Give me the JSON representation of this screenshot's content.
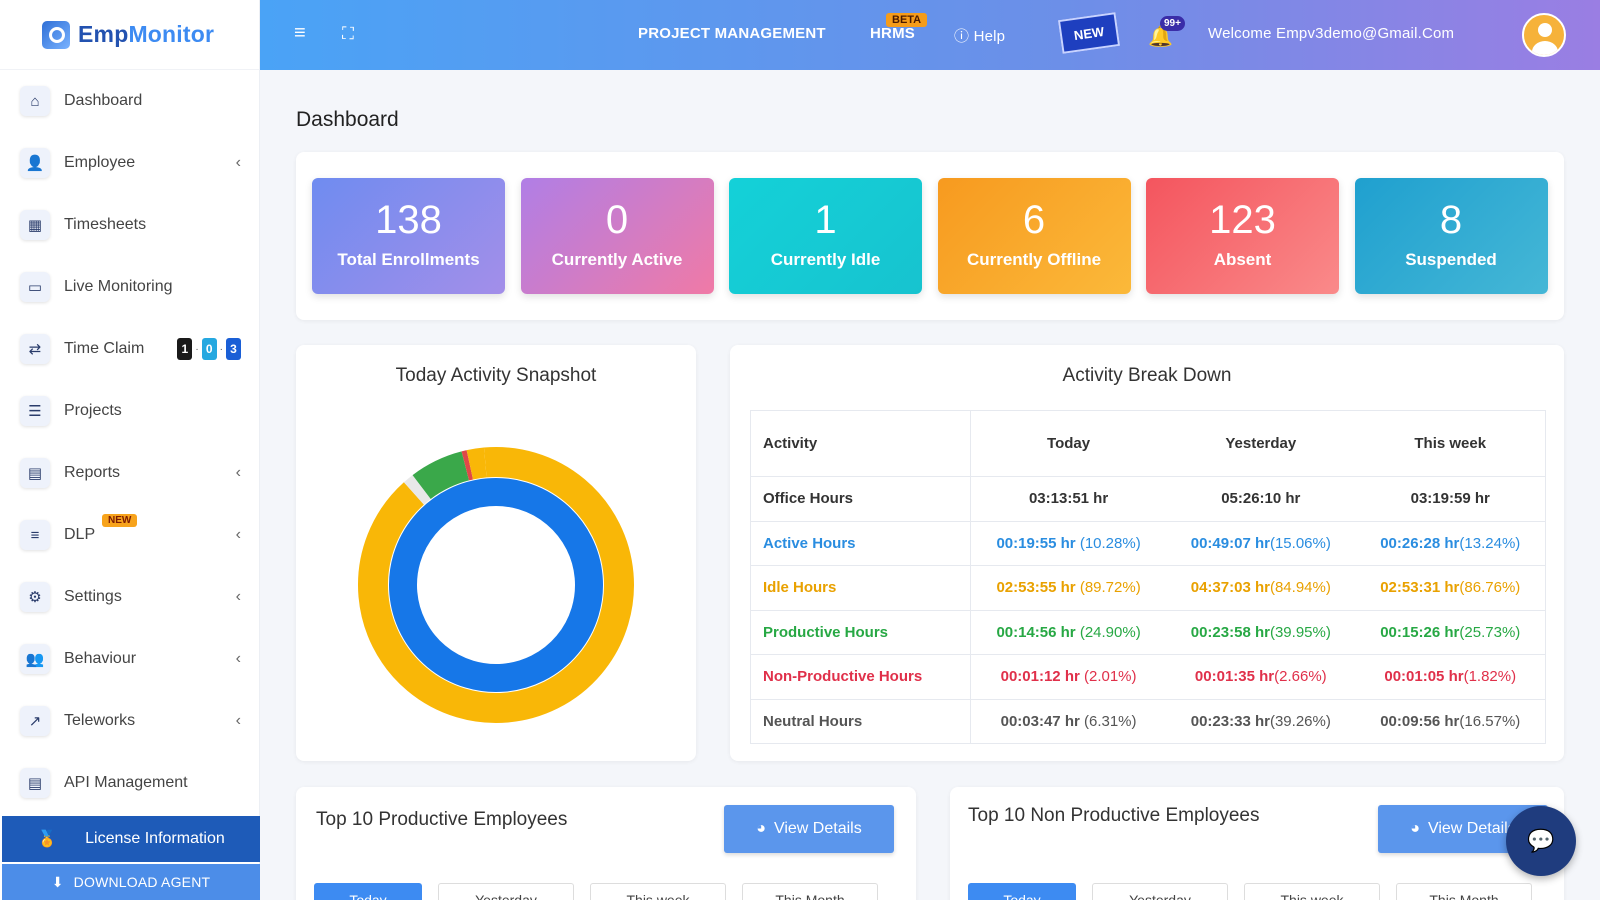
{
  "app": {
    "logo_emp": "Emp",
    "logo_monitor": "Monitor"
  },
  "sidebar": {
    "items": [
      {
        "label": "Dashboard",
        "icon": "home-icon",
        "glyph": "⌂"
      },
      {
        "label": "Employee",
        "icon": "user-icon",
        "glyph": "👤"
      },
      {
        "label": "Timesheets",
        "icon": "calendar-icon",
        "glyph": "▦"
      },
      {
        "label": "Live Monitoring",
        "icon": "monitor-icon",
        "glyph": "▭"
      },
      {
        "label": "Time Claim",
        "icon": "exchange-icon",
        "glyph": "⇄"
      },
      {
        "label": "Projects",
        "icon": "list-check-icon",
        "glyph": "☰"
      },
      {
        "label": "Reports",
        "icon": "report-icon",
        "glyph": "▤"
      },
      {
        "label": "DLP",
        "icon": "sliders-icon",
        "glyph": "≡"
      },
      {
        "label": "Settings",
        "icon": "gear-icon",
        "glyph": "⚙"
      },
      {
        "label": "Behaviour",
        "icon": "users-gear-icon",
        "glyph": "👥"
      },
      {
        "label": "Teleworks",
        "icon": "line-chart-icon",
        "glyph": "↗"
      },
      {
        "label": "API Management",
        "icon": "document-icon",
        "glyph": "▤"
      }
    ],
    "dlp_badge": "NEW",
    "time_claim_badges": [
      "1",
      "0",
      "3"
    ],
    "time_claim_badge_colors": [
      "#1a1a1a",
      "#25a8e0",
      "#1a5fd6"
    ],
    "license_label": "License Information",
    "download_label": "DOWNLOAD AGENT"
  },
  "topbar": {
    "project_management": "PROJECT MANAGEMENT",
    "hrms": "HRMS",
    "beta": "BETA",
    "help": "Help",
    "new_flag": "NEW",
    "notifications": "99+",
    "welcome": "Welcome  Empv3demo@Gmail.Com"
  },
  "page": {
    "title": "Dashboard"
  },
  "stats": [
    {
      "value": "138",
      "label": "Total Enrollments",
      "gradient": [
        "#6f8cf0",
        "#a38ee9"
      ]
    },
    {
      "value": "0",
      "label": "Currently Active",
      "gradient": [
        "#b07ee6",
        "#f07aa6"
      ]
    },
    {
      "value": "1",
      "label": "Currently Idle",
      "gradient": [
        "#14d1d8",
        "#17c3cf"
      ]
    },
    {
      "value": "6",
      "label": "Currently Offline",
      "gradient": [
        "#f79a1f",
        "#fbb93a"
      ]
    },
    {
      "value": "123",
      "label": "Absent",
      "gradient": [
        "#f4555e",
        "#fa8a8a"
      ]
    },
    {
      "value": "8",
      "label": "Suspended",
      "gradient": [
        "#1fa0cf",
        "#45b7d6"
      ]
    }
  ],
  "snapshot": {
    "title": "Today Activity Snapshot",
    "chart_data": {
      "type": "pie",
      "outer_ring": [
        {
          "value": 89.72,
          "color": "#f9b707"
        },
        {
          "value": 1.3,
          "color": "#e8e8e8"
        },
        {
          "value": 6.31,
          "color": "#3aa84a"
        },
        {
          "value": 0.6,
          "color": "#e04848"
        },
        {
          "value": 2.07,
          "color": "#f9b707"
        }
      ],
      "inner_ring": [
        {
          "value": 100,
          "color": "#1677e8"
        }
      ]
    }
  },
  "breakdown": {
    "title": "Activity Break Down",
    "headers": [
      "Activity",
      "Today",
      "Yesterday",
      "This week"
    ],
    "rows": [
      {
        "label": "Office Hours",
        "color": "#333333",
        "cells": [
          [
            "03:13:51 hr",
            ""
          ],
          [
            "05:26:10 hr",
            ""
          ],
          [
            "03:19:59 hr",
            ""
          ]
        ]
      },
      {
        "label": "Active Hours",
        "color": "#2a8de0",
        "cells": [
          [
            "00:19:55 hr",
            " (10.28%)"
          ],
          [
            "00:49:07 hr",
            "(15.06%)"
          ],
          [
            "00:26:28 hr",
            "(13.24%)"
          ]
        ]
      },
      {
        "label": "Idle Hours",
        "color": "#e9a100",
        "cells": [
          [
            "02:53:55 hr",
            " (89.72%)"
          ],
          [
            "04:37:03 hr",
            "(84.94%)"
          ],
          [
            "02:53:31 hr",
            "(86.76%)"
          ]
        ]
      },
      {
        "label": "Productive Hours",
        "color": "#27a844",
        "cells": [
          [
            "00:14:56 hr",
            " (24.90%)"
          ],
          [
            "00:23:58 hr",
            "(39.95%)"
          ],
          [
            "00:15:26 hr",
            "(25.73%)"
          ]
        ]
      },
      {
        "label": "Non-Productive Hours",
        "color": "#e0304a",
        "cells": [
          [
            "00:01:12 hr",
            " (2.01%)"
          ],
          [
            "00:01:35 hr",
            "(2.66%)"
          ],
          [
            "00:01:05 hr",
            "(1.82%)"
          ]
        ]
      },
      {
        "label": "Neutral Hours",
        "color": "#555555",
        "cells": [
          [
            "00:03:47 hr",
            " (6.31%)"
          ],
          [
            "00:23:33 hr",
            "(39.26%)"
          ],
          [
            "00:09:56 hr",
            "(16.57%)"
          ]
        ]
      }
    ]
  },
  "productive": {
    "title": "Top 10 Productive Employees",
    "view_details": "View Details",
    "tabs": [
      "Today",
      "Yesterday",
      "This week",
      "This Month"
    ]
  },
  "non_productive": {
    "title": "Top 10 Non Productive Employees",
    "view_details": "View Details",
    "tabs": [
      "Today",
      "Yesterday",
      "This week",
      "This Month"
    ]
  }
}
